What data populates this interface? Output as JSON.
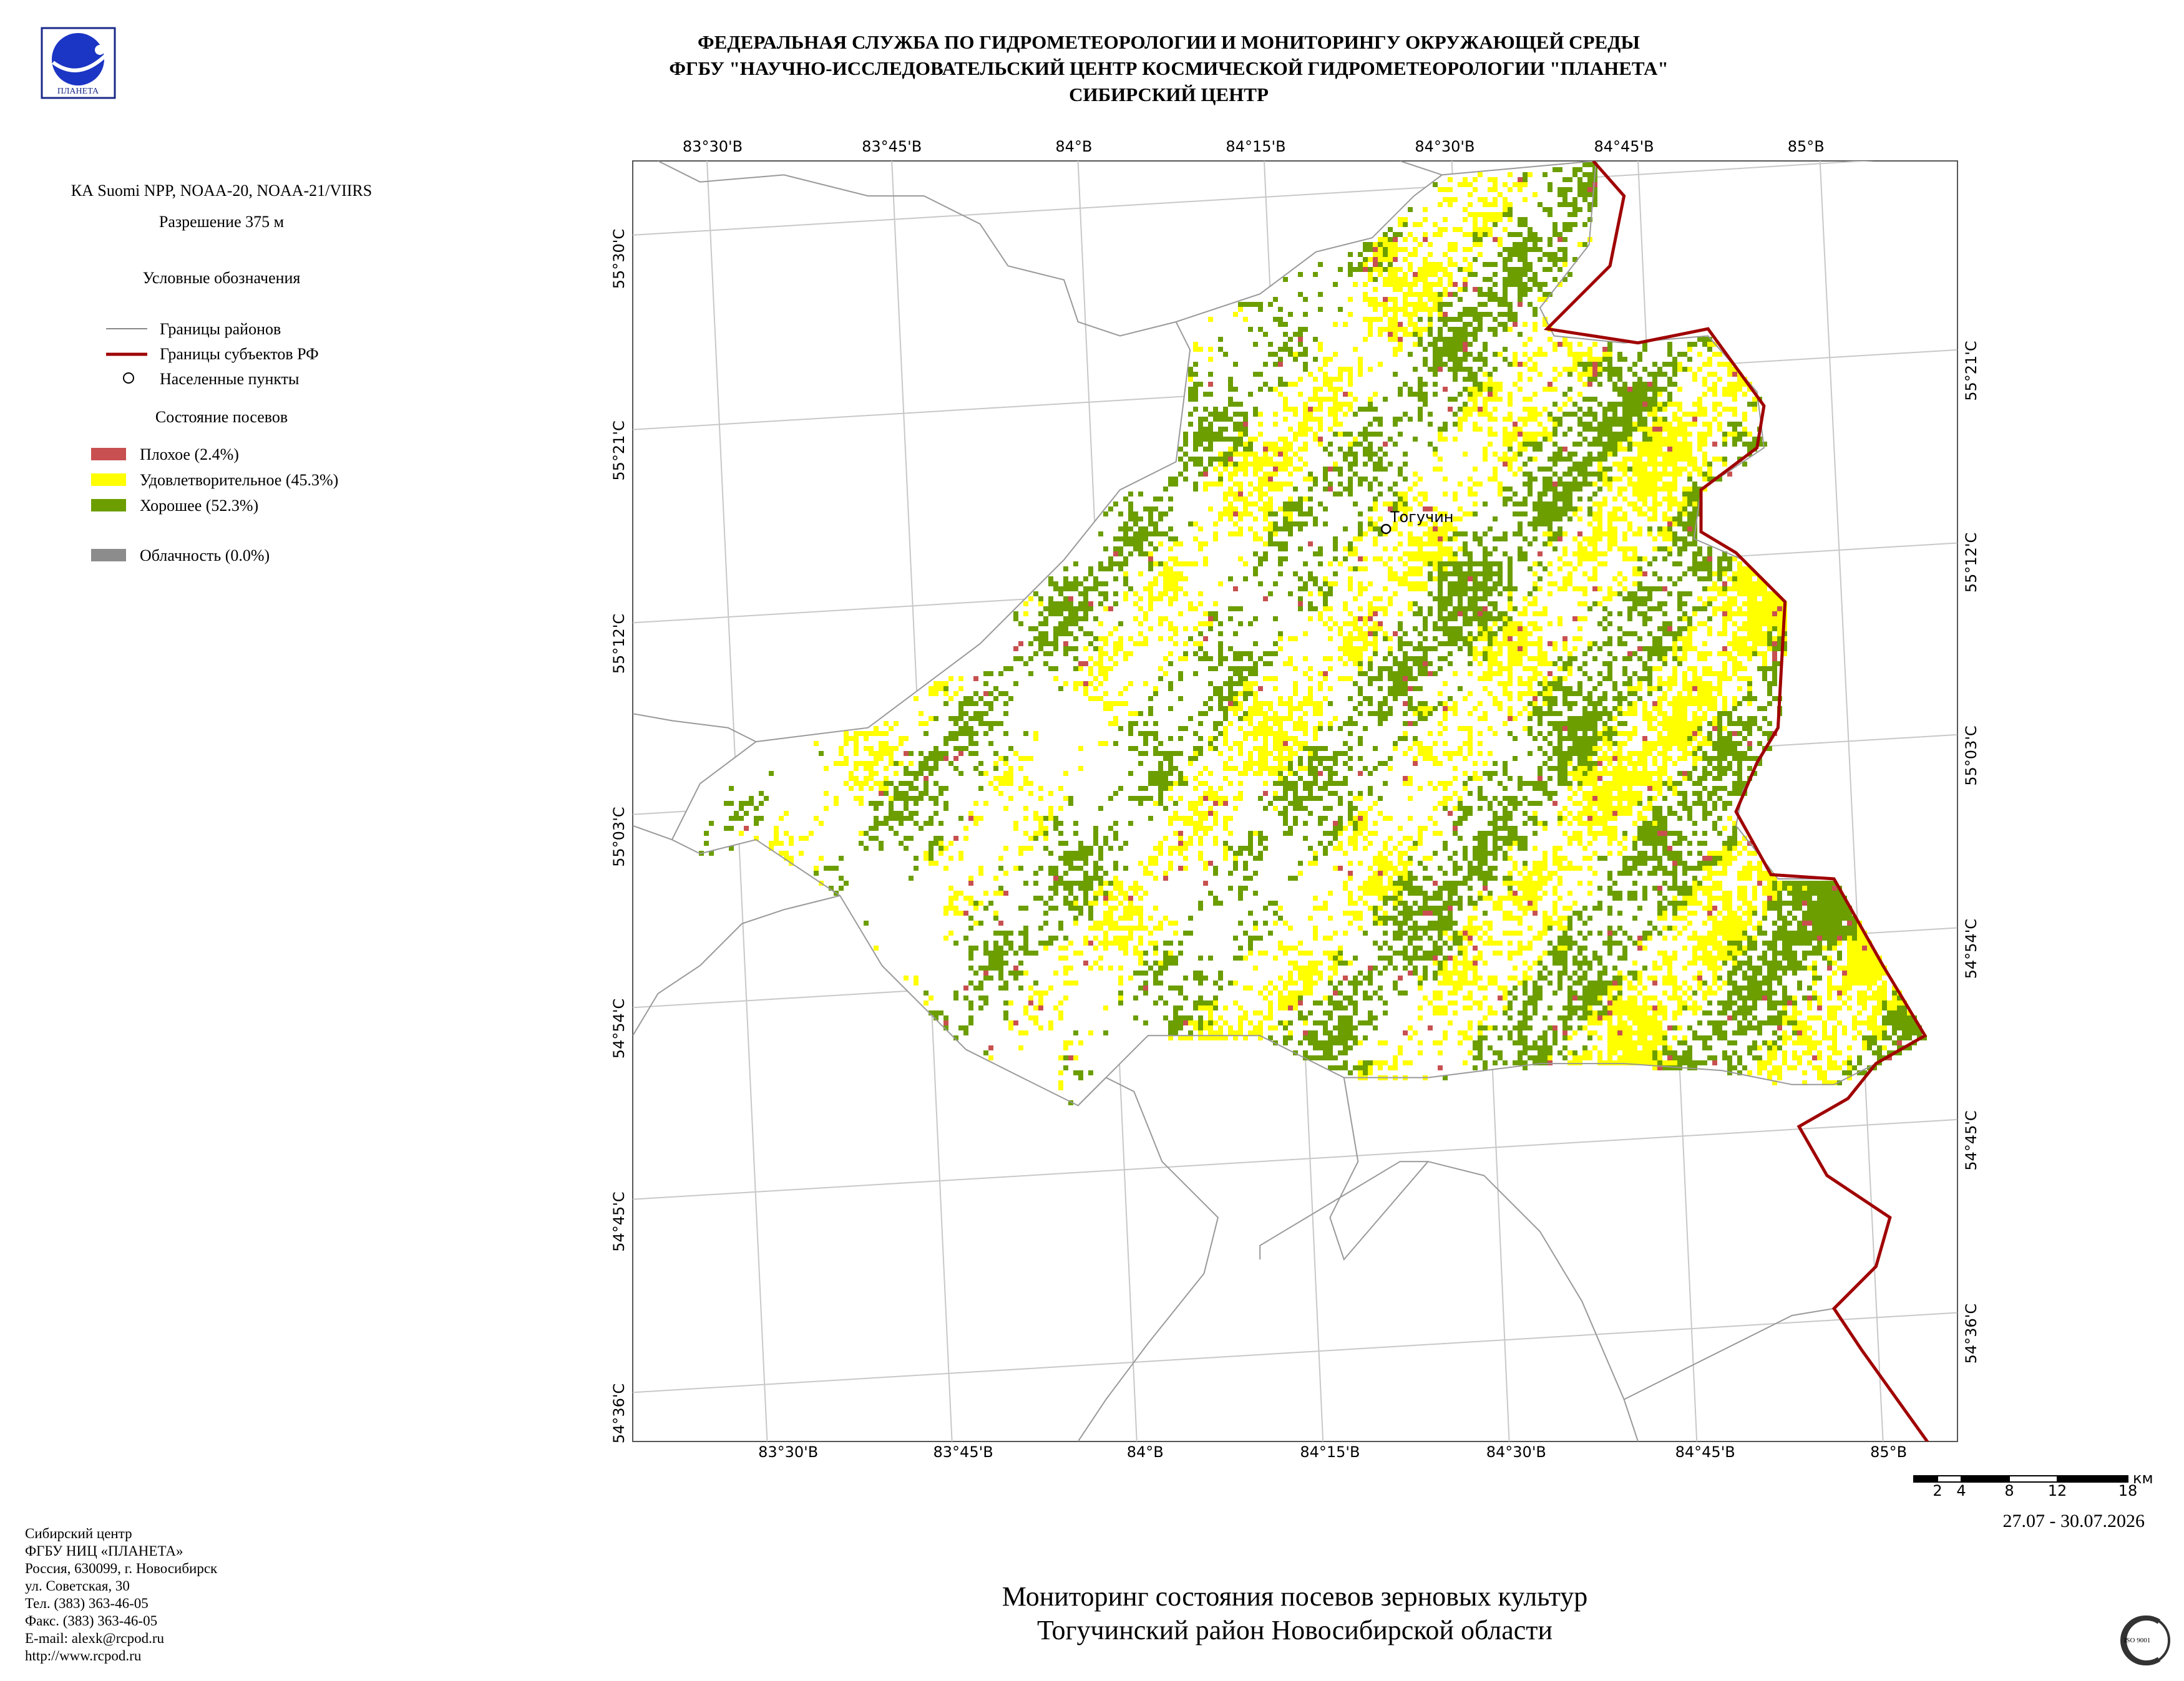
{
  "header": {
    "lines": [
      "ФЕДЕРАЛЬНАЯ СЛУЖБА ПО ГИДРОМЕТЕОРОЛОГИИ И МОНИТОРИНГУ ОКРУЖАЮЩЕЙ СРЕДЫ",
      "ФГБУ \"НАУЧНО-ИССЛЕДОВАТЕЛЬСКИЙ ЦЕНТР КОСМИЧЕСКОЙ ГИДРОМЕТЕОРОЛОГИИ \"ПЛАНЕТА\"",
      "СИБИРСКИЙ ЦЕНТР"
    ]
  },
  "legend": {
    "satellite": "КА Suomi NPP, NOAA-20, NOAA-21/VIIRS",
    "resolution": "Разрешение 375 м",
    "title": "Условные обозначения",
    "boundaries": [
      "Границы районов",
      "Границы субъектов РФ",
      "Населенные пункты"
    ],
    "crop_title": "Состояние посевов",
    "crop_items": [
      "Плохое (2.4%)",
      "Удовлетворительное (45.3%)",
      "Хорошее (52.3%)"
    ],
    "cloud": "Облачность (0.0%)"
  },
  "map": {
    "lon_labels": [
      "83°30'В",
      "83°45'В",
      "84°В",
      "84°15'В",
      "84°30'В",
      "84°45'В",
      "85°В"
    ],
    "lat_labels_left": [
      "55°30'С",
      "55°21'С",
      "55°12'С",
      "55°03'С",
      "54°54'С",
      "54°45'С",
      "54°36'С"
    ],
    "lat_labels_right": [
      "55°21'С",
      "55°12'С",
      "55°03'С",
      "54°54'С",
      "54°45'С",
      "54°36'С"
    ],
    "town": "Тогучин"
  },
  "scale": {
    "ticks": [
      "2",
      "4",
      "8",
      "12",
      "18"
    ],
    "unit": "км"
  },
  "date": "27.07 - 30.07.2026",
  "footer": {
    "lines": [
      "Сибирский центр",
      "ФГБУ НИЦ «ПЛАНЕТА»",
      "Россия, 630099, г. Новосибирск",
      "ул. Советская, 30",
      "Тел. (383) 363-46-05",
      "Факс. (383) 363-46-05",
      "E-mail: alexk@rcpod.ru",
      "http://www.rcpod.ru"
    ]
  },
  "title": {
    "lines": [
      "Мониторинг состояния посевов зерновых культур",
      "Тогучинский район Новосибирской области"
    ]
  }
}
